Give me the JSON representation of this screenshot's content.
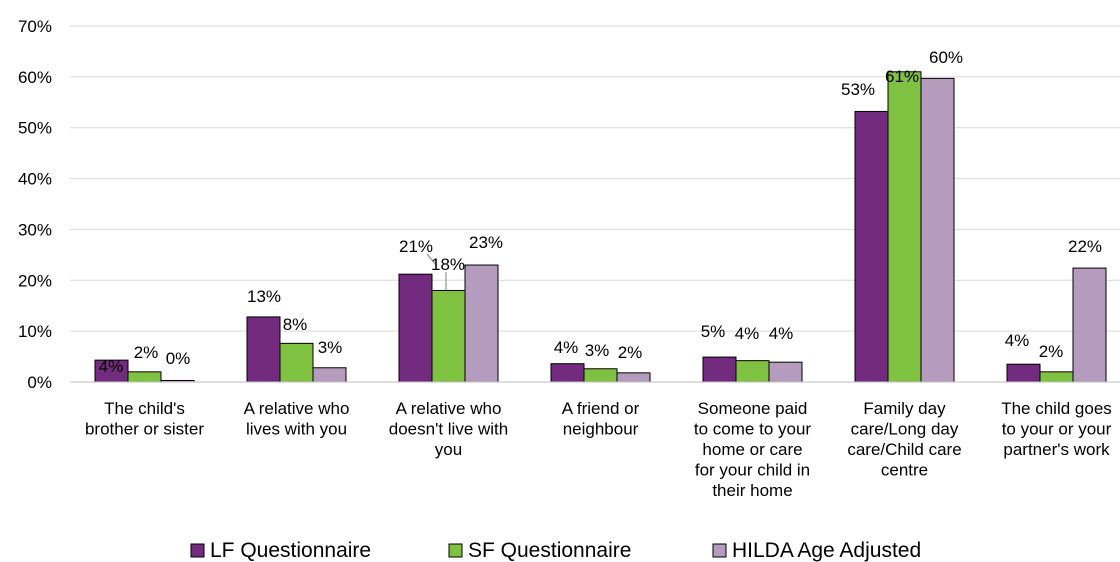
{
  "chart_data": {
    "type": "bar",
    "title": "",
    "xlabel": "",
    "ylabel": "",
    "ylim": [
      0,
      70
    ],
    "yticks": [
      0,
      10,
      20,
      30,
      40,
      50,
      60,
      70
    ],
    "ytick_format": "{v}%",
    "grid": true,
    "legend_position": "bottom",
    "categories": [
      "The child's brother or sister",
      "A relative who lives with you",
      "A relative who doesn't live with you",
      "A friend or neighbour",
      "Someone paid to come to your home or care for your child in their home",
      "Family day care/Long day care/Child care centre",
      "The child goes to your or your partner's work"
    ],
    "category_label_lines": [
      [
        "The child's",
        "brother or sister"
      ],
      [
        "A relative who",
        "lives with you"
      ],
      [
        "A relative who",
        "doesn't live with",
        "you"
      ],
      [
        "A friend or",
        "neighbour"
      ],
      [
        "Someone paid",
        "to come to your",
        "home or care",
        "for your child in",
        "their home"
      ],
      [
        "Family day",
        "care/Long day",
        "care/Child care",
        "centre"
      ],
      [
        "The child goes",
        "to your or your",
        "partner's work"
      ]
    ],
    "series": [
      {
        "name": "LF Questionnaire",
        "color": "#722b7e",
        "values": [
          4.3,
          12.8,
          21.2,
          3.6,
          4.9,
          53.2,
          3.5
        ],
        "labels": [
          "4%",
          "13%",
          "21%",
          "4%",
          "5%",
          "53%",
          "4%"
        ]
      },
      {
        "name": "SF Questionnaire",
        "color": "#7fc241",
        "values": [
          2.0,
          7.6,
          18.0,
          2.6,
          4.2,
          61.0,
          2.0
        ],
        "labels": [
          "2%",
          "8%",
          "18%",
          "3%",
          "4%",
          "61%",
          "2%"
        ]
      },
      {
        "name": "HILDA Age Adjusted",
        "color": "#b59bbd",
        "values": [
          0.3,
          2.8,
          23.0,
          1.8,
          3.9,
          59.7,
          22.4
        ],
        "labels": [
          "0%",
          "3%",
          "23%",
          "2%",
          "4%",
          "60%",
          "22%"
        ]
      }
    ]
  }
}
